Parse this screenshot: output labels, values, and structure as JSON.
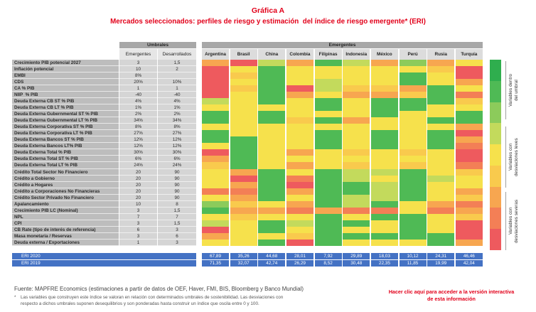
{
  "figure_label": "Gráfica A",
  "chart_data": {
    "type": "heatmap",
    "title": "Mercados seleccionados: perfiles de riesgo y estimación  del índice de riesgo emergente* (ERI)",
    "x": [
      "Argentina",
      "Brasil",
      "China",
      "Colombia",
      "Filipinas",
      "Indonesia",
      "México",
      "Perú",
      "Rusia",
      "Turquía"
    ],
    "rows": [
      {
        "label": "Crecimiento PIB potencial 2027",
        "umbral_emergentes": "3",
        "umbral_desarrollados": "1,5",
        "levels": [
          6,
          8,
          3,
          6,
          1,
          3,
          6,
          2,
          6,
          4
        ]
      },
      {
        "label": "Inflación potencial",
        "umbral_emergentes": "10",
        "umbral_desarrollados": "2",
        "levels": [
          8,
          4,
          1,
          4,
          4,
          4,
          4,
          4,
          5,
          8
        ]
      },
      {
        "label": "EMBI",
        "umbral_emergentes": "8%",
        "umbral_desarrollados": "",
        "levels": [
          8,
          5,
          1,
          4,
          4,
          4,
          4,
          1,
          4,
          8
        ]
      },
      {
        "label": "CDS",
        "umbral_emergentes": "20%",
        "umbral_desarrollados": "10%",
        "levels": [
          8,
          4,
          1,
          4,
          3,
          4,
          4,
          1,
          4,
          6
        ]
      },
      {
        "label": "CA % PIB",
        "umbral_emergentes": "1",
        "umbral_desarrollados": "1",
        "levels": [
          8,
          5,
          1,
          8,
          3,
          5,
          5,
          6,
          1,
          4
        ]
      },
      {
        "label": "NIIP  % PIB",
        "umbral_emergentes": "-40",
        "umbral_desarrollados": "-40",
        "levels": [
          8,
          4,
          1,
          6,
          4,
          6,
          6,
          5,
          1,
          7
        ]
      },
      {
        "label": "Deuda Externa CB ST % PIB",
        "umbral_emergentes": "4%",
        "umbral_desarrollados": "4%",
        "levels": [
          3,
          4,
          1,
          4,
          1,
          4,
          1,
          1,
          1,
          5
        ]
      },
      {
        "label": "Deuda Externa CB LT % PIB",
        "umbral_emergentes": "1%",
        "umbral_desarrollados": "1%",
        "levels": [
          4,
          4,
          4,
          4,
          1,
          4,
          1,
          1,
          4,
          4
        ]
      },
      {
        "label": "Deuda Externa Gubernmental ST % PIB",
        "umbral_emergentes": "2%",
        "umbral_desarrollados": "2%",
        "levels": [
          1,
          4,
          1,
          4,
          4,
          4,
          1,
          4,
          4,
          1
        ]
      },
      {
        "label": "Deuda Externa Gubernmental LT % PIB",
        "umbral_emergentes": "34%",
        "umbral_desarrollados": "34%",
        "levels": [
          1,
          4,
          1,
          5,
          1,
          6,
          4,
          4,
          1,
          1
        ]
      },
      {
        "label": "Deuda Externa Corporativa ST % PIB",
        "umbral_emergentes": "8%",
        "umbral_desarrollados": "8%",
        "levels": [
          4,
          4,
          4,
          4,
          4,
          4,
          4,
          4,
          4,
          6
        ]
      },
      {
        "label": "Deuda Externa Corporativa LT % PIB",
        "umbral_emergentes": "27%",
        "umbral_desarrollados": "27%",
        "levels": [
          1,
          4,
          4,
          4,
          1,
          4,
          1,
          4,
          1,
          8
        ]
      },
      {
        "label": "Deuda Externa Bancos ST % PIB",
        "umbral_emergentes": "12%",
        "umbral_desarrollados": "12%",
        "levels": [
          1,
          1,
          4,
          4,
          1,
          4,
          1,
          4,
          1,
          6
        ]
      },
      {
        "label": "Deuda Externa Bancos LT% PIB",
        "umbral_emergentes": "12%",
        "umbral_desarrollados": "12%",
        "levels": [
          4,
          1,
          4,
          4,
          1,
          4,
          1,
          4,
          1,
          7
        ]
      },
      {
        "label": "Deuda Externa Total % PIB",
        "umbral_emergentes": "30%",
        "umbral_desarrollados": "30%",
        "levels": [
          8,
          1,
          4,
          6,
          4,
          5,
          4,
          5,
          4,
          8
        ]
      },
      {
        "label": "Deuda Externa Total ST % PIB",
        "umbral_emergentes": "6%",
        "umbral_desarrollados": "6%",
        "levels": [
          6,
          1,
          4,
          4,
          4,
          4,
          4,
          4,
          4,
          8
        ]
      },
      {
        "label": "Deuda Externa Total LT % PIB",
        "umbral_emergentes": "24%",
        "umbral_desarrollados": "24%",
        "levels": [
          5,
          1,
          4,
          6,
          4,
          5,
          4,
          5,
          4,
          7
        ]
      },
      {
        "label": "Crédito Total Sector No Financiero",
        "umbral_emergentes": "20",
        "umbral_desarrollados": "90",
        "levels": [
          4,
          6,
          1,
          4,
          1,
          3,
          3,
          1,
          4,
          5
        ]
      },
      {
        "label": "Crédito a Gobierno",
        "umbral_emergentes": "20",
        "umbral_desarrollados": "90",
        "levels": [
          4,
          8,
          1,
          7,
          1,
          3,
          4,
          1,
          3,
          4
        ]
      },
      {
        "label": "Crédito a Hogares",
        "umbral_emergentes": "20",
        "umbral_desarrollados": "90",
        "levels": [
          4,
          6,
          1,
          8,
          1,
          1,
          3,
          1,
          4,
          4
        ]
      },
      {
        "label": "Crédito a Corporaciones No Financieras",
        "umbral_emergentes": "20",
        "umbral_desarrollados": "90",
        "levels": [
          7,
          7,
          1,
          6,
          1,
          1,
          3,
          1,
          4,
          6
        ]
      },
      {
        "label": "Crédito Sector Privado No Financiero",
        "umbral_emergentes": "20",
        "umbral_desarrollados": "90",
        "levels": [
          4,
          6,
          1,
          4,
          1,
          3,
          3,
          1,
          4,
          5
        ]
      },
      {
        "label": "Apalancamiento",
        "umbral_emergentes": "10",
        "umbral_desarrollados": "8",
        "levels": [
          2,
          5,
          4,
          6,
          1,
          3,
          1,
          4,
          6,
          7
        ]
      },
      {
        "label": "Crecimiento PIB LC (Nominal)",
        "umbral_emergentes": "3",
        "umbral_desarrollados": "1,5",
        "levels": [
          1,
          6,
          6,
          7,
          6,
          7,
          7,
          4,
          7,
          6
        ]
      },
      {
        "label": "NPL",
        "umbral_emergentes": "7",
        "umbral_desarrollados": "7",
        "levels": [
          4,
          5,
          4,
          4,
          1,
          4,
          1,
          1,
          4,
          5
        ]
      },
      {
        "label": "CPI",
        "umbral_emergentes": "3",
        "umbral_desarrollados": "1,5",
        "levels": [
          3,
          4,
          1,
          3,
          1,
          1,
          4,
          1,
          4,
          8
        ]
      },
      {
        "label": "CB Rate (tipo de interés de referencia)",
        "umbral_emergentes": "6",
        "umbral_desarrollados": "3",
        "levels": [
          8,
          4,
          1,
          4,
          1,
          4,
          4,
          1,
          4,
          8
        ]
      },
      {
        "label": "Masa monetaria / Reservas",
        "umbral_emergentes": "3",
        "umbral_desarrollados": "6",
        "levels": [
          6,
          4,
          4,
          5,
          1,
          1,
          1,
          1,
          1,
          8
        ]
      },
      {
        "label": "Deuda externa / Exportaciones",
        "umbral_emergentes": "1",
        "umbral_desarrollados": "3",
        "levels": [
          4,
          4,
          1,
          8,
          1,
          4,
          4,
          4,
          1,
          6
        ]
      }
    ]
  },
  "thresholds": {
    "header": "Umbrales",
    "columns": [
      "Emergentes",
      "Desarrollados"
    ]
  },
  "countries_header": "Emergentes",
  "eri": [
    {
      "label": "ERI 2020",
      "values": [
        "67,89",
        "35,26",
        "44,68",
        "28,01",
        "7,92",
        "29,89",
        "18,03",
        "10,12",
        "24,31",
        "46,46"
      ]
    },
    {
      "label": "ERI 2019",
      "values": [
        "71,35",
        "32,07",
        "42,74",
        "26,29",
        "8,52",
        "30,48",
        "22,35",
        "11,85",
        "19,99",
        "42,04"
      ]
    }
  ],
  "legend": {
    "colors": [
      "#2fae4e",
      "#4fba55",
      "#8ccb5b",
      "#c3da5c",
      "#f6e14c",
      "#f9ca4d",
      "#f7a650",
      "#f37f56",
      "#ee5a5e"
    ],
    "labels": [
      [
        "Variables dentro",
        "del umbral"
      ],
      [
        "Variables con",
        "desviaciones leves"
      ],
      [
        "Variables con",
        "desviaciones severas"
      ]
    ]
  },
  "footer": {
    "source": "Fuente: MAPFRE Economics (estimaciones a partir de datos de OEF, Haver, FMI, BIS, Bloomberg y Banco Mundial)",
    "note_marker": "*",
    "note_lines": [
      "Las variables que construyen este índice se valoran en relación con determinados umbrales de sostenibilidad. Las desviaciones con",
      "respecto a dichos umbrales suponen desequilibrios y son ponderadas hasta construir un índice que oscila entre 0 y 100."
    ],
    "link_lines": [
      "Hacer clic aquí para acceder a la versión interactiva",
      "de esta información"
    ]
  }
}
